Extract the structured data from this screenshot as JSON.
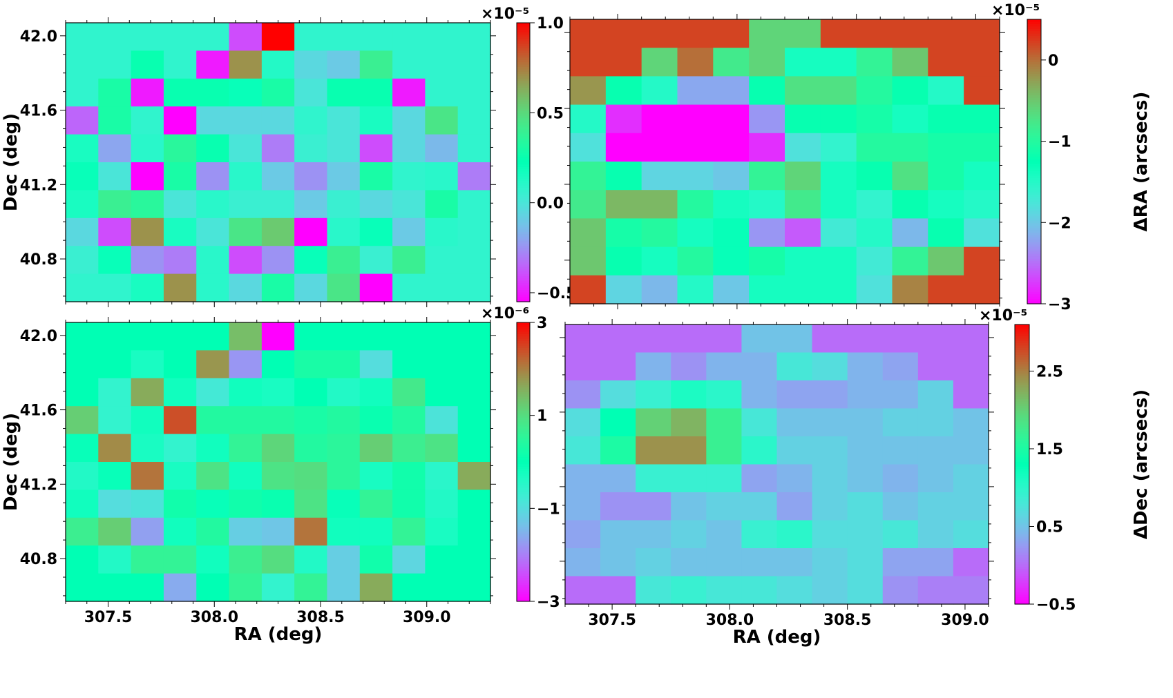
{
  "chart_data": [
    {
      "type": "heatmap",
      "name": "top-left",
      "colormap": "rainbow",
      "x_range": [
        307.3,
        309.3
      ],
      "y_range": [
        40.57,
        42.07
      ],
      "x_ticks": [
        307.5,
        308.0,
        308.5,
        309.0
      ],
      "x_tick_labels": [
        "307.5",
        "308.0",
        "308.5",
        "309.0"
      ],
      "show_x_tick_labels": false,
      "y_ticks": [
        40.8,
        41.2,
        41.6,
        42.0
      ],
      "y_tick_labels": [
        "40.8",
        "41.2",
        "41.6",
        "42.0"
      ],
      "show_y_tick_labels": true,
      "xlabel": "",
      "ylabel": "Dec (deg)",
      "colorbar": {
        "vmin": -0.55,
        "vmax": 1.0,
        "ticks": [
          -0.5,
          0.0,
          0.5,
          1.0
        ],
        "tick_labels": [
          "−0.5",
          "0.0",
          "0.5",
          "1.0"
        ],
        "exponent": "×10⁻⁵",
        "label": ""
      },
      "grid": [
        [
          0.08,
          0.08,
          0.08,
          0.08,
          0.08,
          -0.4,
          1.0,
          0.08,
          0.08,
          0.08,
          0.08,
          0.08,
          0.08
        ],
        [
          0.08,
          0.08,
          0.25,
          0.08,
          -0.5,
          0.7,
          0.12,
          -0.05,
          -0.1,
          0.4,
          0.08,
          0.08,
          0.08
        ],
        [
          0.08,
          0.3,
          -0.5,
          0.25,
          0.25,
          0.2,
          0.3,
          0.0,
          0.25,
          0.25,
          -0.5,
          0.08,
          0.08
        ],
        [
          -0.35,
          0.3,
          0.08,
          -0.55,
          -0.05,
          -0.05,
          -0.05,
          0.08,
          0.0,
          0.15,
          -0.05,
          0.45,
          0.08
        ],
        [
          0.15,
          -0.2,
          0.1,
          0.35,
          0.25,
          0.0,
          -0.3,
          0.05,
          0.0,
          -0.4,
          -0.05,
          -0.15,
          0.08
        ],
        [
          0.2,
          0.0,
          -0.55,
          0.3,
          -0.25,
          0.1,
          -0.1,
          -0.25,
          -0.1,
          0.3,
          0.08,
          0.1,
          -0.3
        ],
        [
          0.15,
          0.4,
          0.35,
          0.0,
          0.1,
          0.05,
          0.05,
          -0.1,
          0.05,
          -0.05,
          0.0,
          0.3,
          0.08
        ],
        [
          -0.05,
          -0.4,
          0.7,
          0.15,
          0.0,
          0.45,
          0.55,
          -0.55,
          0.1,
          0.2,
          -0.1,
          0.1,
          0.08
        ],
        [
          0.05,
          0.2,
          -0.25,
          -0.3,
          0.1,
          -0.4,
          -0.25,
          0.2,
          0.4,
          0.05,
          0.4,
          0.08,
          0.08
        ],
        [
          0.08,
          0.08,
          0.15,
          0.7,
          0.1,
          -0.05,
          0.3,
          -0.05,
          0.45,
          -0.55,
          0.08,
          0.08,
          0.08
        ]
      ]
    },
    {
      "type": "heatmap",
      "name": "top-right",
      "colormap": "rainbow",
      "x_range": [
        307.3,
        309.1
      ],
      "y_range": [
        40.57,
        42.07
      ],
      "x_ticks": [
        307.5,
        308.0,
        308.5,
        309.0
      ],
      "x_tick_labels": [
        "307.5",
        "308.0",
        "308.5",
        "309.0"
      ],
      "show_x_tick_labels": false,
      "y_ticks": [],
      "y_tick_labels": [],
      "show_y_tick_labels": false,
      "xlabel": "",
      "ylabel": "",
      "colorbar": {
        "vmin": -3.0,
        "vmax": 0.5,
        "ticks": [
          -3,
          -2,
          -1,
          0
        ],
        "tick_labels": [
          "−3",
          "−2",
          "−1",
          "0"
        ],
        "exponent": "×10⁻⁵",
        "label": "ΔRA (arcsecs)"
      },
      "grid": [
        [
          0.2,
          0.2,
          0.2,
          0.2,
          0.2,
          -0.6,
          -0.6,
          0.2,
          0.2,
          0.2,
          0.2,
          0.2
        ],
        [
          0.2,
          0.2,
          -0.6,
          0.0,
          -0.8,
          -0.6,
          -1.4,
          -1.4,
          -0.9,
          -0.5,
          0.2,
          0.2
        ],
        [
          -0.2,
          -1.2,
          -1.5,
          -2.2,
          -2.2,
          -1.2,
          -0.7,
          -0.7,
          -1.0,
          -1.2,
          -1.5,
          0.2
        ],
        [
          -1.5,
          -2.8,
          -3.0,
          -3.0,
          -3.0,
          -2.3,
          -1.2,
          -1.2,
          -1.1,
          -1.4,
          -1.2,
          -1.2
        ],
        [
          -1.8,
          -3.0,
          -3.0,
          -3.0,
          -3.0,
          -2.8,
          -1.8,
          -1.6,
          -1.0,
          -1.0,
          -1.1,
          -1.1
        ],
        [
          -0.9,
          -1.2,
          -1.9,
          -1.9,
          -2.0,
          -0.9,
          -0.6,
          -1.4,
          -1.2,
          -0.7,
          -1.1,
          -1.4
        ],
        [
          -0.8,
          -0.4,
          -0.4,
          -1.0,
          -1.4,
          -1.5,
          -0.8,
          -1.4,
          -1.6,
          -1.2,
          -1.4,
          -1.5
        ],
        [
          -0.5,
          -1.1,
          -1.0,
          -1.4,
          -1.3,
          -2.3,
          -2.6,
          -1.7,
          -1.5,
          -2.1,
          -1.2,
          -1.8
        ],
        [
          -0.5,
          -1.2,
          -1.4,
          -1.0,
          -1.3,
          -1.1,
          -1.4,
          -1.4,
          -1.7,
          -0.9,
          -0.5,
          0.2
        ],
        [
          0.2,
          -1.9,
          -2.1,
          -1.5,
          -2.0,
          -1.4,
          -1.4,
          -1.4,
          -1.8,
          -0.1,
          0.2,
          0.2
        ]
      ]
    },
    {
      "type": "heatmap",
      "name": "bottom-left",
      "colormap": "rainbow",
      "x_range": [
        307.3,
        309.3
      ],
      "y_range": [
        40.57,
        42.07
      ],
      "x_ticks": [
        307.5,
        308.0,
        308.5,
        309.0
      ],
      "x_tick_labels": [
        "307.5",
        "308.0",
        "308.5",
        "309.0"
      ],
      "show_x_tick_labels": true,
      "y_ticks": [
        40.8,
        41.2,
        41.6,
        42.0
      ],
      "y_tick_labels": [
        "40.8",
        "41.2",
        "41.6",
        "42.0"
      ],
      "show_y_tick_labels": true,
      "xlabel": "RA (deg)",
      "ylabel": "Dec (deg)",
      "colorbar": {
        "vmin": -3,
        "vmax": 3,
        "ticks": [
          -3,
          -1,
          1,
          3
        ],
        "tick_labels": [
          "−3",
          "−1",
          "1",
          "3"
        ],
        "exponent": "×10⁻⁶",
        "label": ""
      },
      "grid": [
        [
          0.0,
          0.0,
          0.0,
          0.0,
          0.0,
          1.4,
          -3.0,
          0.0,
          0.0,
          0.0,
          0.0,
          0.0,
          0.0
        ],
        [
          0.0,
          0.0,
          -0.3,
          0.0,
          1.8,
          -1.8,
          0.0,
          0.3,
          0.3,
          -1.0,
          0.0,
          0.0,
          0.0
        ],
        [
          0.0,
          -0.6,
          1.6,
          -0.2,
          -0.8,
          -0.2,
          -0.3,
          0.0,
          -0.4,
          -0.2,
          0.8,
          0.0,
          0.0
        ],
        [
          1.2,
          -0.6,
          -0.2,
          2.4,
          0.4,
          0.4,
          0.4,
          0.3,
          0.4,
          0.1,
          0.4,
          -0.9,
          0.0
        ],
        [
          -0.1,
          1.9,
          -0.3,
          -0.6,
          -0.2,
          0.6,
          1.1,
          0.4,
          0.5,
          1.2,
          0.7,
          0.9,
          0.0
        ],
        [
          -0.4,
          -0.1,
          2.1,
          -0.3,
          0.9,
          -0.2,
          0.9,
          1.0,
          0.5,
          -0.3,
          0.2,
          -0.5,
          1.6
        ],
        [
          -0.2,
          -1.0,
          -0.9,
          0.2,
          -0.1,
          0.2,
          0.1,
          0.9,
          -0.1,
          0.6,
          0.2,
          -0.4,
          0.0
        ],
        [
          0.7,
          1.2,
          -1.7,
          -0.2,
          0.4,
          -1.2,
          -1.3,
          2.1,
          -0.2,
          -0.2,
          0.6,
          -0.3,
          0.0
        ],
        [
          0.0,
          -0.4,
          0.6,
          0.6,
          -0.2,
          0.7,
          1.0,
          -0.4,
          -1.2,
          0.2,
          -1.1,
          0.0,
          0.0
        ],
        [
          0.0,
          0.0,
          0.0,
          -1.6,
          0.0,
          0.6,
          -0.6,
          0.6,
          -1.2,
          1.6,
          0.0,
          0.0,
          0.0
        ]
      ]
    },
    {
      "type": "heatmap",
      "name": "bottom-right",
      "colormap": "rainbow",
      "x_range": [
        307.3,
        309.1
      ],
      "y_range": [
        40.57,
        42.07
      ],
      "x_ticks": [
        307.5,
        308.0,
        308.5,
        309.0
      ],
      "x_tick_labels": [
        "307.5",
        "308.0",
        "308.5",
        "309.0"
      ],
      "show_x_tick_labels": true,
      "y_ticks": [],
      "y_tick_labels": [],
      "show_y_tick_labels": false,
      "xlabel": "RA (deg)",
      "ylabel": "",
      "colorbar": {
        "vmin": -0.5,
        "vmax": 3.1,
        "ticks": [
          -0.5,
          0.5,
          1.5,
          2.5
        ],
        "tick_labels": [
          "−0.5",
          "0.5",
          "1.5",
          "2.5"
        ],
        "exponent": "×10⁻⁵",
        "label": "ΔDec (arcsecs)"
      },
      "grid": [
        [
          0.0,
          0.0,
          0.0,
          0.0,
          0.0,
          0.5,
          0.5,
          0.0,
          0.0,
          0.0,
          0.0,
          0.0
        ],
        [
          0.0,
          0.0,
          0.4,
          0.2,
          0.4,
          0.4,
          0.8,
          0.7,
          0.4,
          0.3,
          0.0,
          0.0
        ],
        [
          0.2,
          0.7,
          0.9,
          1.1,
          1.0,
          0.4,
          0.3,
          0.3,
          0.4,
          0.4,
          0.6,
          0.0
        ],
        [
          0.7,
          1.3,
          2.0,
          2.2,
          1.7,
          0.8,
          0.5,
          0.5,
          0.5,
          0.6,
          0.6,
          0.5
        ],
        [
          0.8,
          1.5,
          2.4,
          2.4,
          1.7,
          1.0,
          0.6,
          0.6,
          0.5,
          0.5,
          0.5,
          0.5
        ],
        [
          0.4,
          0.4,
          0.9,
          0.9,
          0.9,
          0.3,
          0.4,
          0.6,
          0.5,
          0.4,
          0.5,
          0.6
        ],
        [
          0.4,
          0.2,
          0.2,
          0.5,
          0.6,
          0.6,
          0.3,
          0.6,
          0.7,
          0.5,
          0.6,
          0.6
        ],
        [
          0.3,
          0.5,
          0.5,
          0.6,
          0.5,
          0.9,
          1.0,
          0.7,
          0.7,
          0.8,
          0.6,
          0.7
        ],
        [
          0.4,
          0.5,
          0.6,
          0.5,
          0.5,
          0.5,
          0.5,
          0.6,
          0.7,
          0.3,
          0.3,
          0.0
        ],
        [
          0.0,
          0.0,
          0.8,
          0.9,
          0.8,
          0.8,
          0.7,
          0.6,
          0.7,
          0.2,
          0.1,
          0.1
        ]
      ]
    }
  ]
}
